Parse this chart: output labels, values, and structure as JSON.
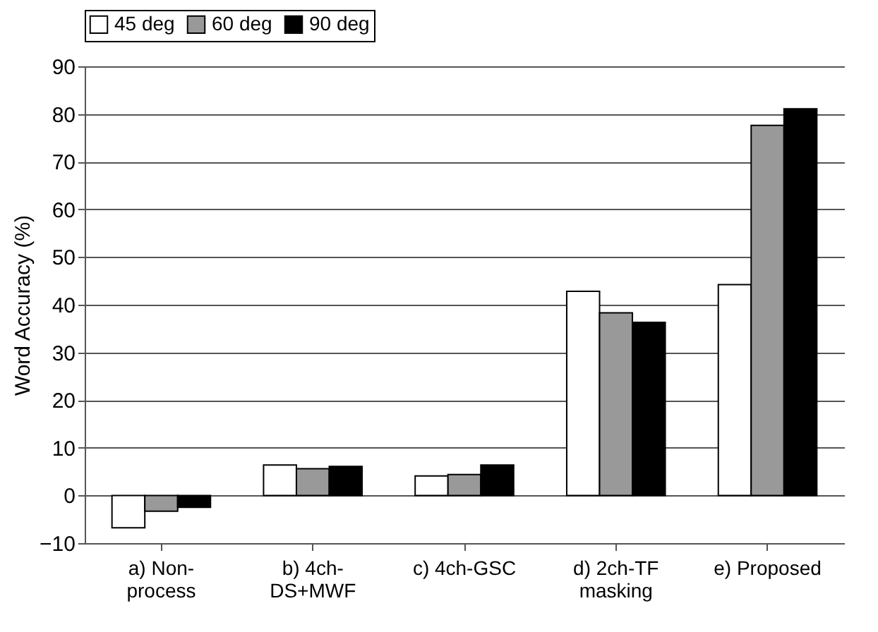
{
  "chart_data": {
    "type": "bar",
    "ylabel": "Word Accuracy (%)",
    "categories": [
      "a) Non-\nprocess",
      "b) 4ch-\nDS+MWF",
      "c) 4ch-GSC",
      "d) 2ch-TF\nmasking",
      "e) Proposed"
    ],
    "series": [
      {
        "name": "45 deg",
        "color": "#ffffff",
        "values": [
          -6.8,
          6.4,
          4.1,
          42.8,
          44.2
        ]
      },
      {
        "name": "60 deg",
        "color": "#999999",
        "values": [
          -3.3,
          5.6,
          4.4,
          38.3,
          77.6
        ]
      },
      {
        "name": "90 deg",
        "color": "#000000",
        "values": [
          -2.5,
          6.1,
          6.4,
          36.3,
          81.1
        ]
      }
    ],
    "ylim": [
      -10,
      90
    ],
    "yticks": [
      -10,
      0,
      10,
      20,
      30,
      40,
      50,
      60,
      70,
      80,
      90
    ],
    "grid": "y",
    "legend": "top"
  }
}
